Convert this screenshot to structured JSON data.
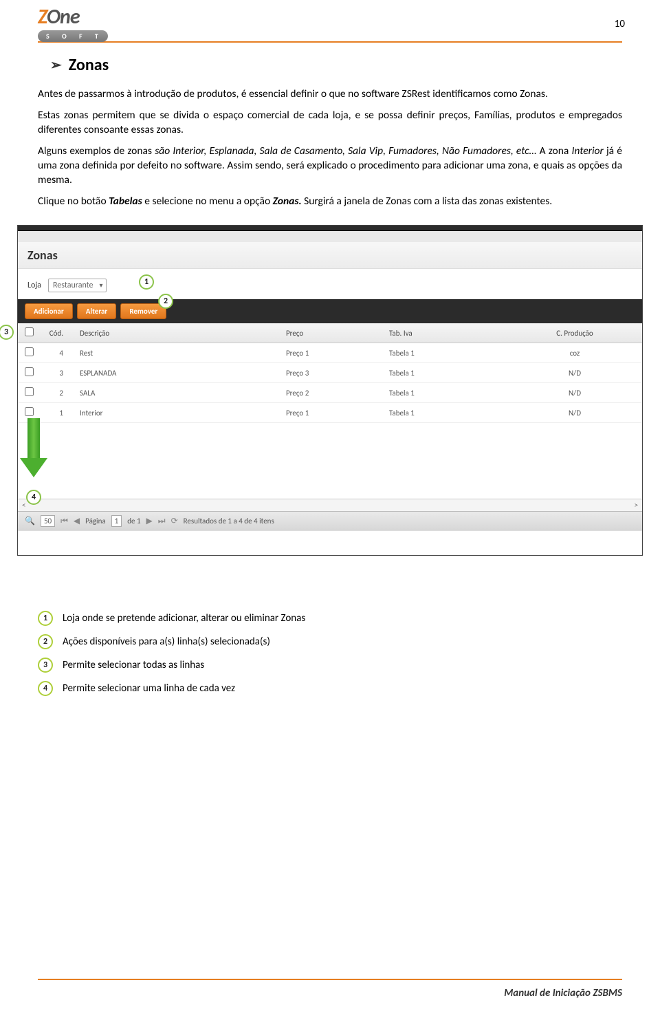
{
  "header": {
    "logo_part1": "Z",
    "logo_part2": "One",
    "logo_sub": "S O F T",
    "page_number": "10"
  },
  "section": {
    "title": "Zonas"
  },
  "paragraphs": {
    "p1": "Antes de passarmos à introdução de produtos, é essencial definir o que no software ZSRest identificamos como Zonas.",
    "p2a": "Estas zonas permitem que se divida o espaço comercial de cada loja, e se possa definir preços, Famílias, produtos e empregados diferentes consoante essas zonas.",
    "p3_pre": "Alguns exemplos de zonas ",
    "p3_italic1": "são Interior, Esplanada, Sala de Casamento, Sala Vip, Fumadores, Não Fumadores, etc…",
    "p3_mid": " A zona ",
    "p3_italic2": "Interior",
    "p3_post": " já é uma zona definida por defeito no software. Assim sendo, será explicado o procedimento para adicionar uma zona, e quais as opções da mesma.",
    "p4_pre": "Clique no botão ",
    "p4_i1": "Tabelas",
    "p4_mid": " e selecione no menu a opção ",
    "p4_i2": "Zonas.",
    "p4_post": " Surgirá a janela de Zonas com a lista das zonas existentes."
  },
  "screenshot": {
    "title": "Zonas",
    "loja_label": "Loja",
    "loja_value": "Restaurante",
    "buttons": {
      "add": "Adicionar",
      "edit": "Alterar",
      "del": "Remover"
    },
    "columns": {
      "cod": "Cód.",
      "desc": "Descrição",
      "preco": "Preço",
      "iva": "Tab. Iva",
      "cprod": "C. Produção"
    },
    "rows": [
      {
        "cod": "4",
        "desc": "Rest",
        "preco": "Preço 1",
        "iva": "Tabela 1",
        "cprod": "coz"
      },
      {
        "cod": "3",
        "desc": "ESPLANADA",
        "preco": "Preço 3",
        "iva": "Tabela 1",
        "cprod": "N/D"
      },
      {
        "cod": "2",
        "desc": "SALA",
        "preco": "Preço 2",
        "iva": "Tabela 1",
        "cprod": "N/D"
      },
      {
        "cod": "1",
        "desc": "Interior",
        "preco": "Preço 1",
        "iva": "Tabela 1",
        "cprod": "N/D"
      }
    ],
    "pager": {
      "size": "50",
      "page_label_pre": "Página",
      "page_val": "1",
      "page_label_post": "de 1",
      "results": "Resultados de 1 a 4 de 4 itens"
    },
    "callouts": {
      "c1": "1",
      "c2": "2",
      "c3": "3",
      "c4": "4"
    }
  },
  "legend": {
    "items": [
      {
        "num": "1",
        "text": "Loja onde se pretende adicionar, alterar ou eliminar Zonas"
      },
      {
        "num": "2",
        "text": "Ações disponíveis para a(s) linha(s) selecionada(s)"
      },
      {
        "num": "3",
        "text": "Permite selecionar todas as linhas"
      },
      {
        "num": "4",
        "text": "Permite selecionar uma linha de cada vez"
      }
    ]
  },
  "footer": {
    "text": "Manual de Iniciação ZSBMS"
  }
}
